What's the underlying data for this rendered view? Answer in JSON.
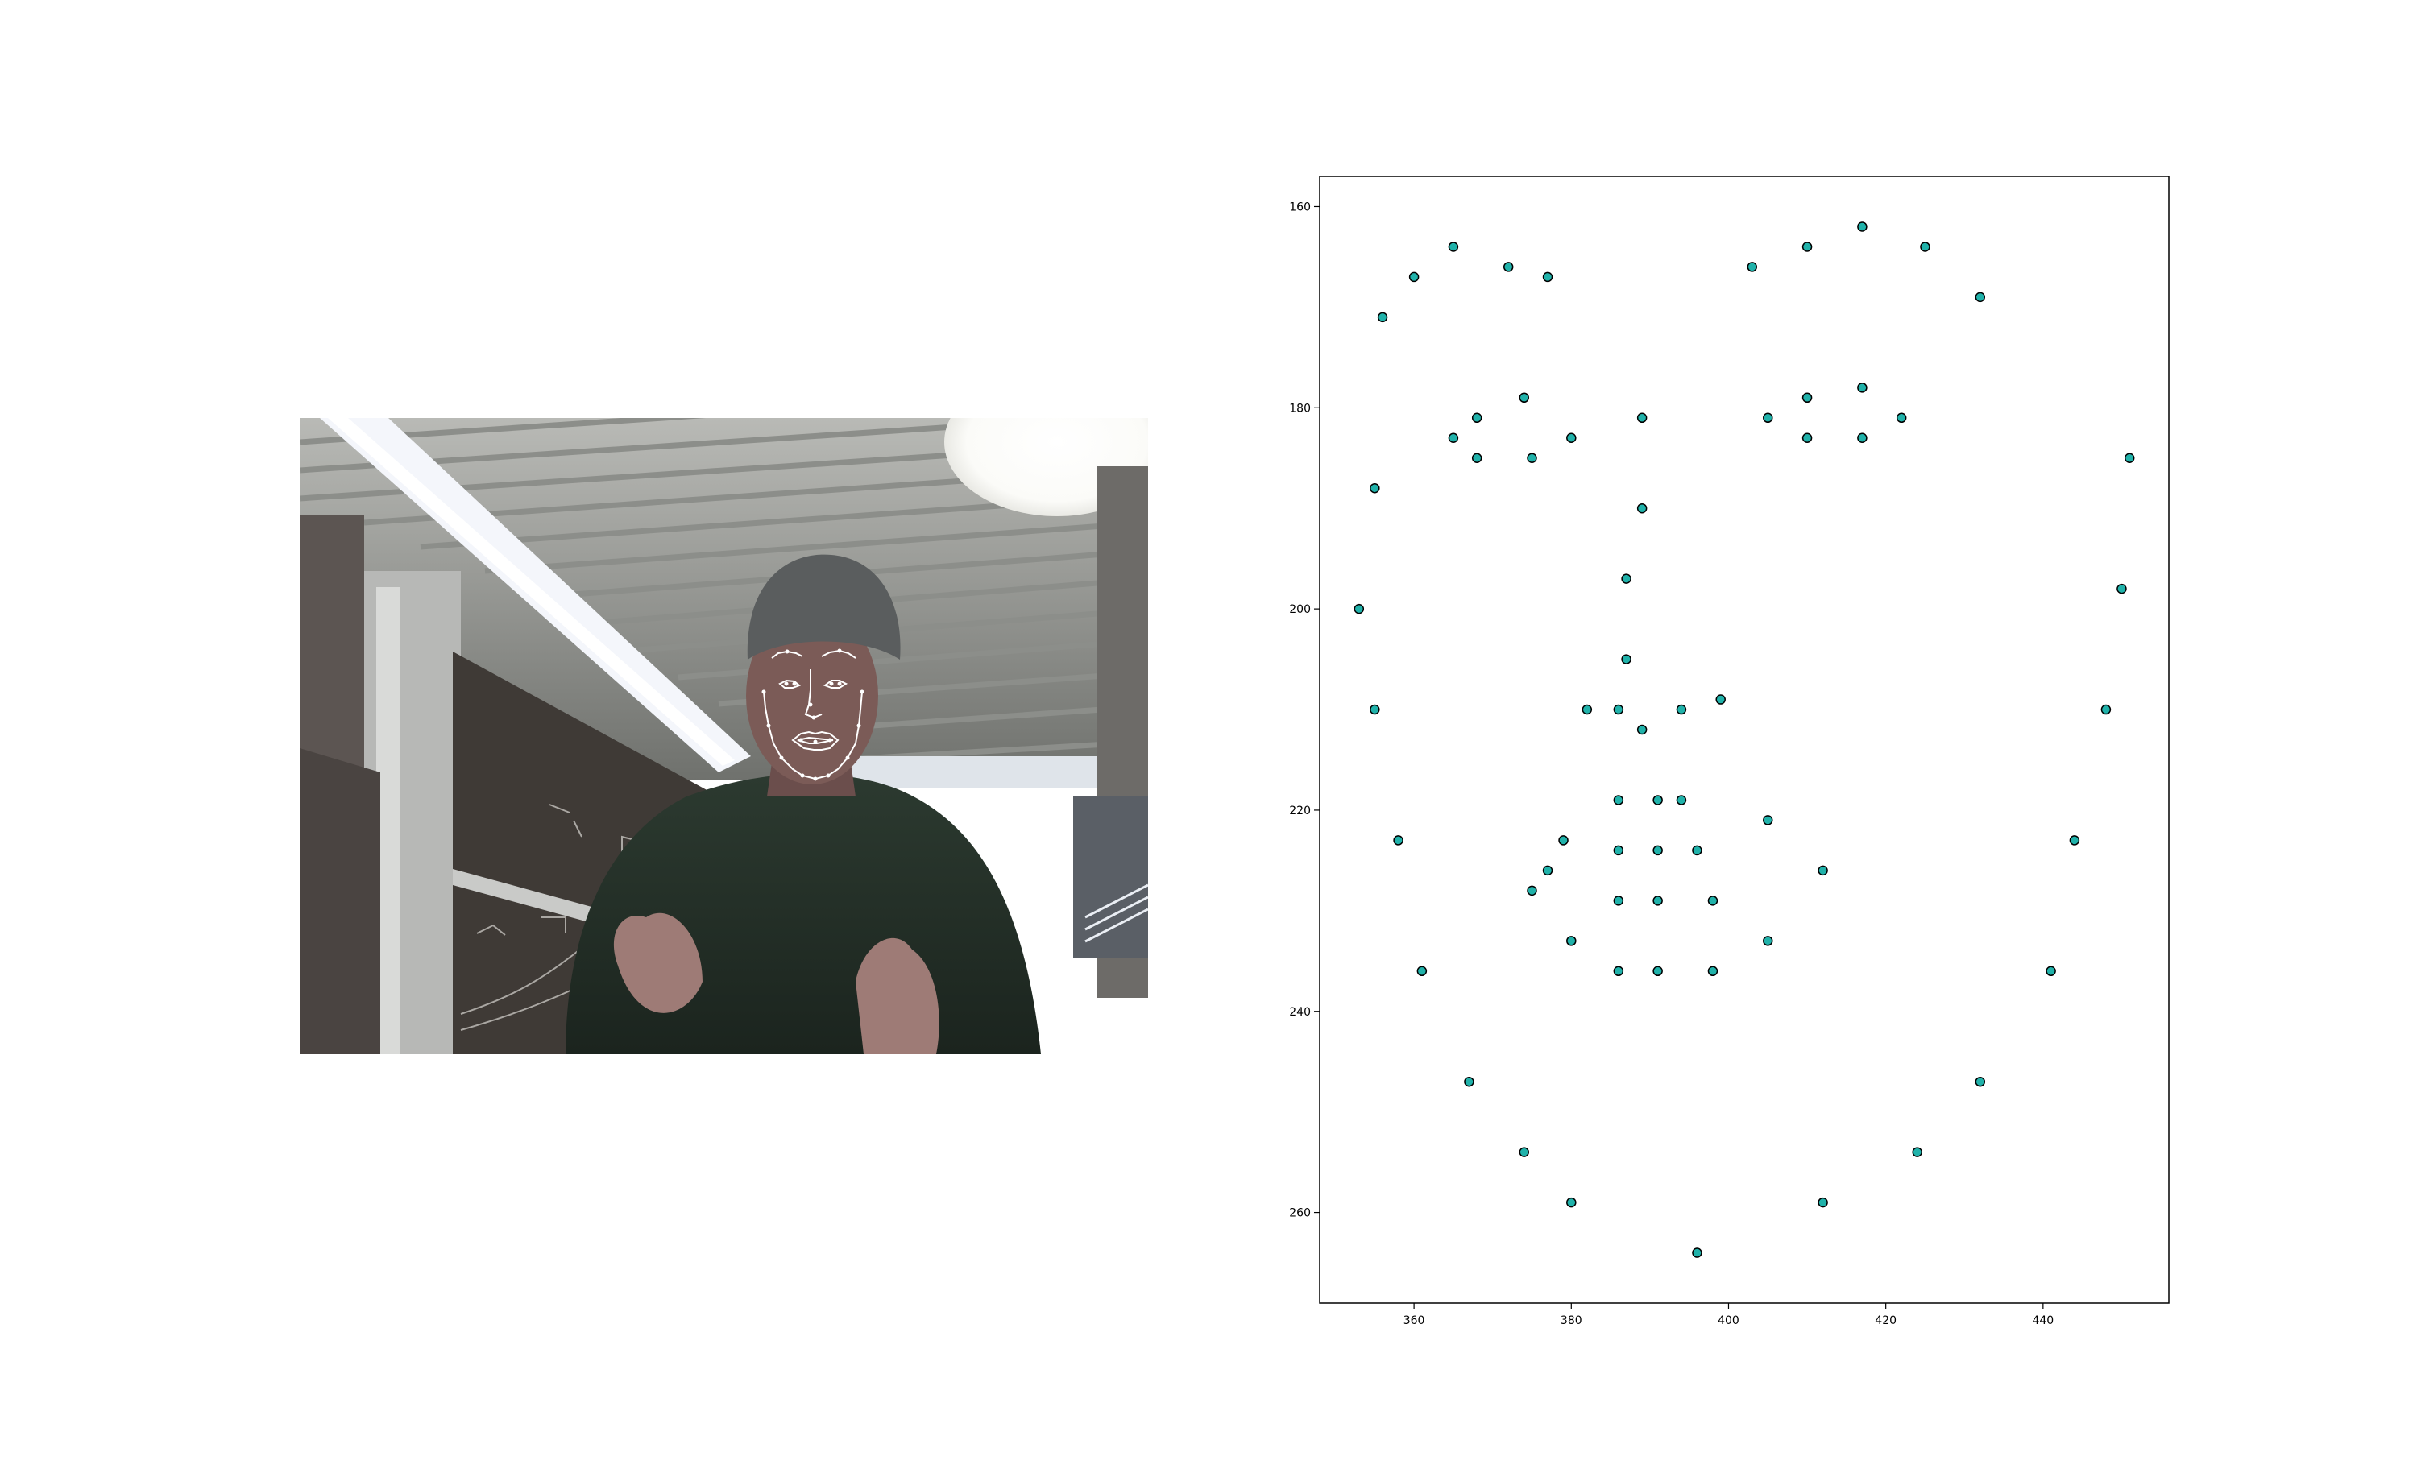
{
  "figure": {
    "left_panel": {
      "kind": "webcam-photo",
      "description_icon": "person-with-face-landmarks-image",
      "overlay_color": "#ffffff"
    },
    "right_panel": {
      "kind": "scatter-plot",
      "marker_face": "#20b2aa",
      "marker_edge": "#000000"
    }
  },
  "chart_data": {
    "type": "scatter",
    "title": "",
    "xlabel": "",
    "ylabel": "",
    "xlim": [
      348,
      456
    ],
    "ylim": [
      269,
      157
    ],
    "y_inverted": true,
    "grid": false,
    "legend": "none",
    "xticks": [
      360,
      380,
      400,
      420,
      440
    ],
    "yticks": [
      160,
      180,
      200,
      220,
      240,
      260
    ],
    "xtick_labels": [
      "360",
      "380",
      "400",
      "420",
      "440"
    ],
    "ytick_labels": [
      "160",
      "180",
      "200",
      "220",
      "240",
      "260"
    ],
    "points": [
      [
        353,
        200
      ],
      [
        355,
        210
      ],
      [
        358,
        223
      ],
      [
        361,
        236
      ],
      [
        367,
        247
      ],
      [
        374,
        254
      ],
      [
        380,
        259
      ],
      [
        396,
        264
      ],
      [
        412,
        259
      ],
      [
        424,
        254
      ],
      [
        432,
        247
      ],
      [
        441,
        236
      ],
      [
        444,
        223
      ],
      [
        448,
        210
      ],
      [
        450,
        198
      ],
      [
        451,
        185
      ],
      [
        355,
        188
      ],
      [
        356,
        171
      ],
      [
        360,
        167
      ],
      [
        365,
        164
      ],
      [
        372,
        166
      ],
      [
        377,
        167
      ],
      [
        403,
        166
      ],
      [
        410,
        164
      ],
      [
        417,
        162
      ],
      [
        425,
        164
      ],
      [
        432,
        169
      ],
      [
        389,
        181
      ],
      [
        389,
        190
      ],
      [
        387,
        197
      ],
      [
        387,
        205
      ],
      [
        389,
        212
      ],
      [
        382,
        210
      ],
      [
        386,
        210
      ],
      [
        394,
        210
      ],
      [
        399,
        209
      ],
      [
        365,
        183
      ],
      [
        368,
        181
      ],
      [
        374,
        179
      ],
      [
        380,
        183
      ],
      [
        375,
        185
      ],
      [
        368,
        185
      ],
      [
        405,
        181
      ],
      [
        410,
        179
      ],
      [
        417,
        178
      ],
      [
        422,
        181
      ],
      [
        417,
        183
      ],
      [
        410,
        183
      ],
      [
        375,
        228
      ],
      [
        377,
        226
      ],
      [
        379,
        223
      ],
      [
        386,
        224
      ],
      [
        391,
        224
      ],
      [
        396,
        224
      ],
      [
        405,
        221
      ],
      [
        412,
        226
      ],
      [
        405,
        233
      ],
      [
        398,
        236
      ],
      [
        391,
        236
      ],
      [
        386,
        236
      ],
      [
        380,
        233
      ],
      [
        386,
        229
      ],
      [
        391,
        229
      ],
      [
        398,
        229
      ],
      [
        386,
        219
      ],
      [
        391,
        219
      ],
      [
        394,
        219
      ]
    ]
  }
}
